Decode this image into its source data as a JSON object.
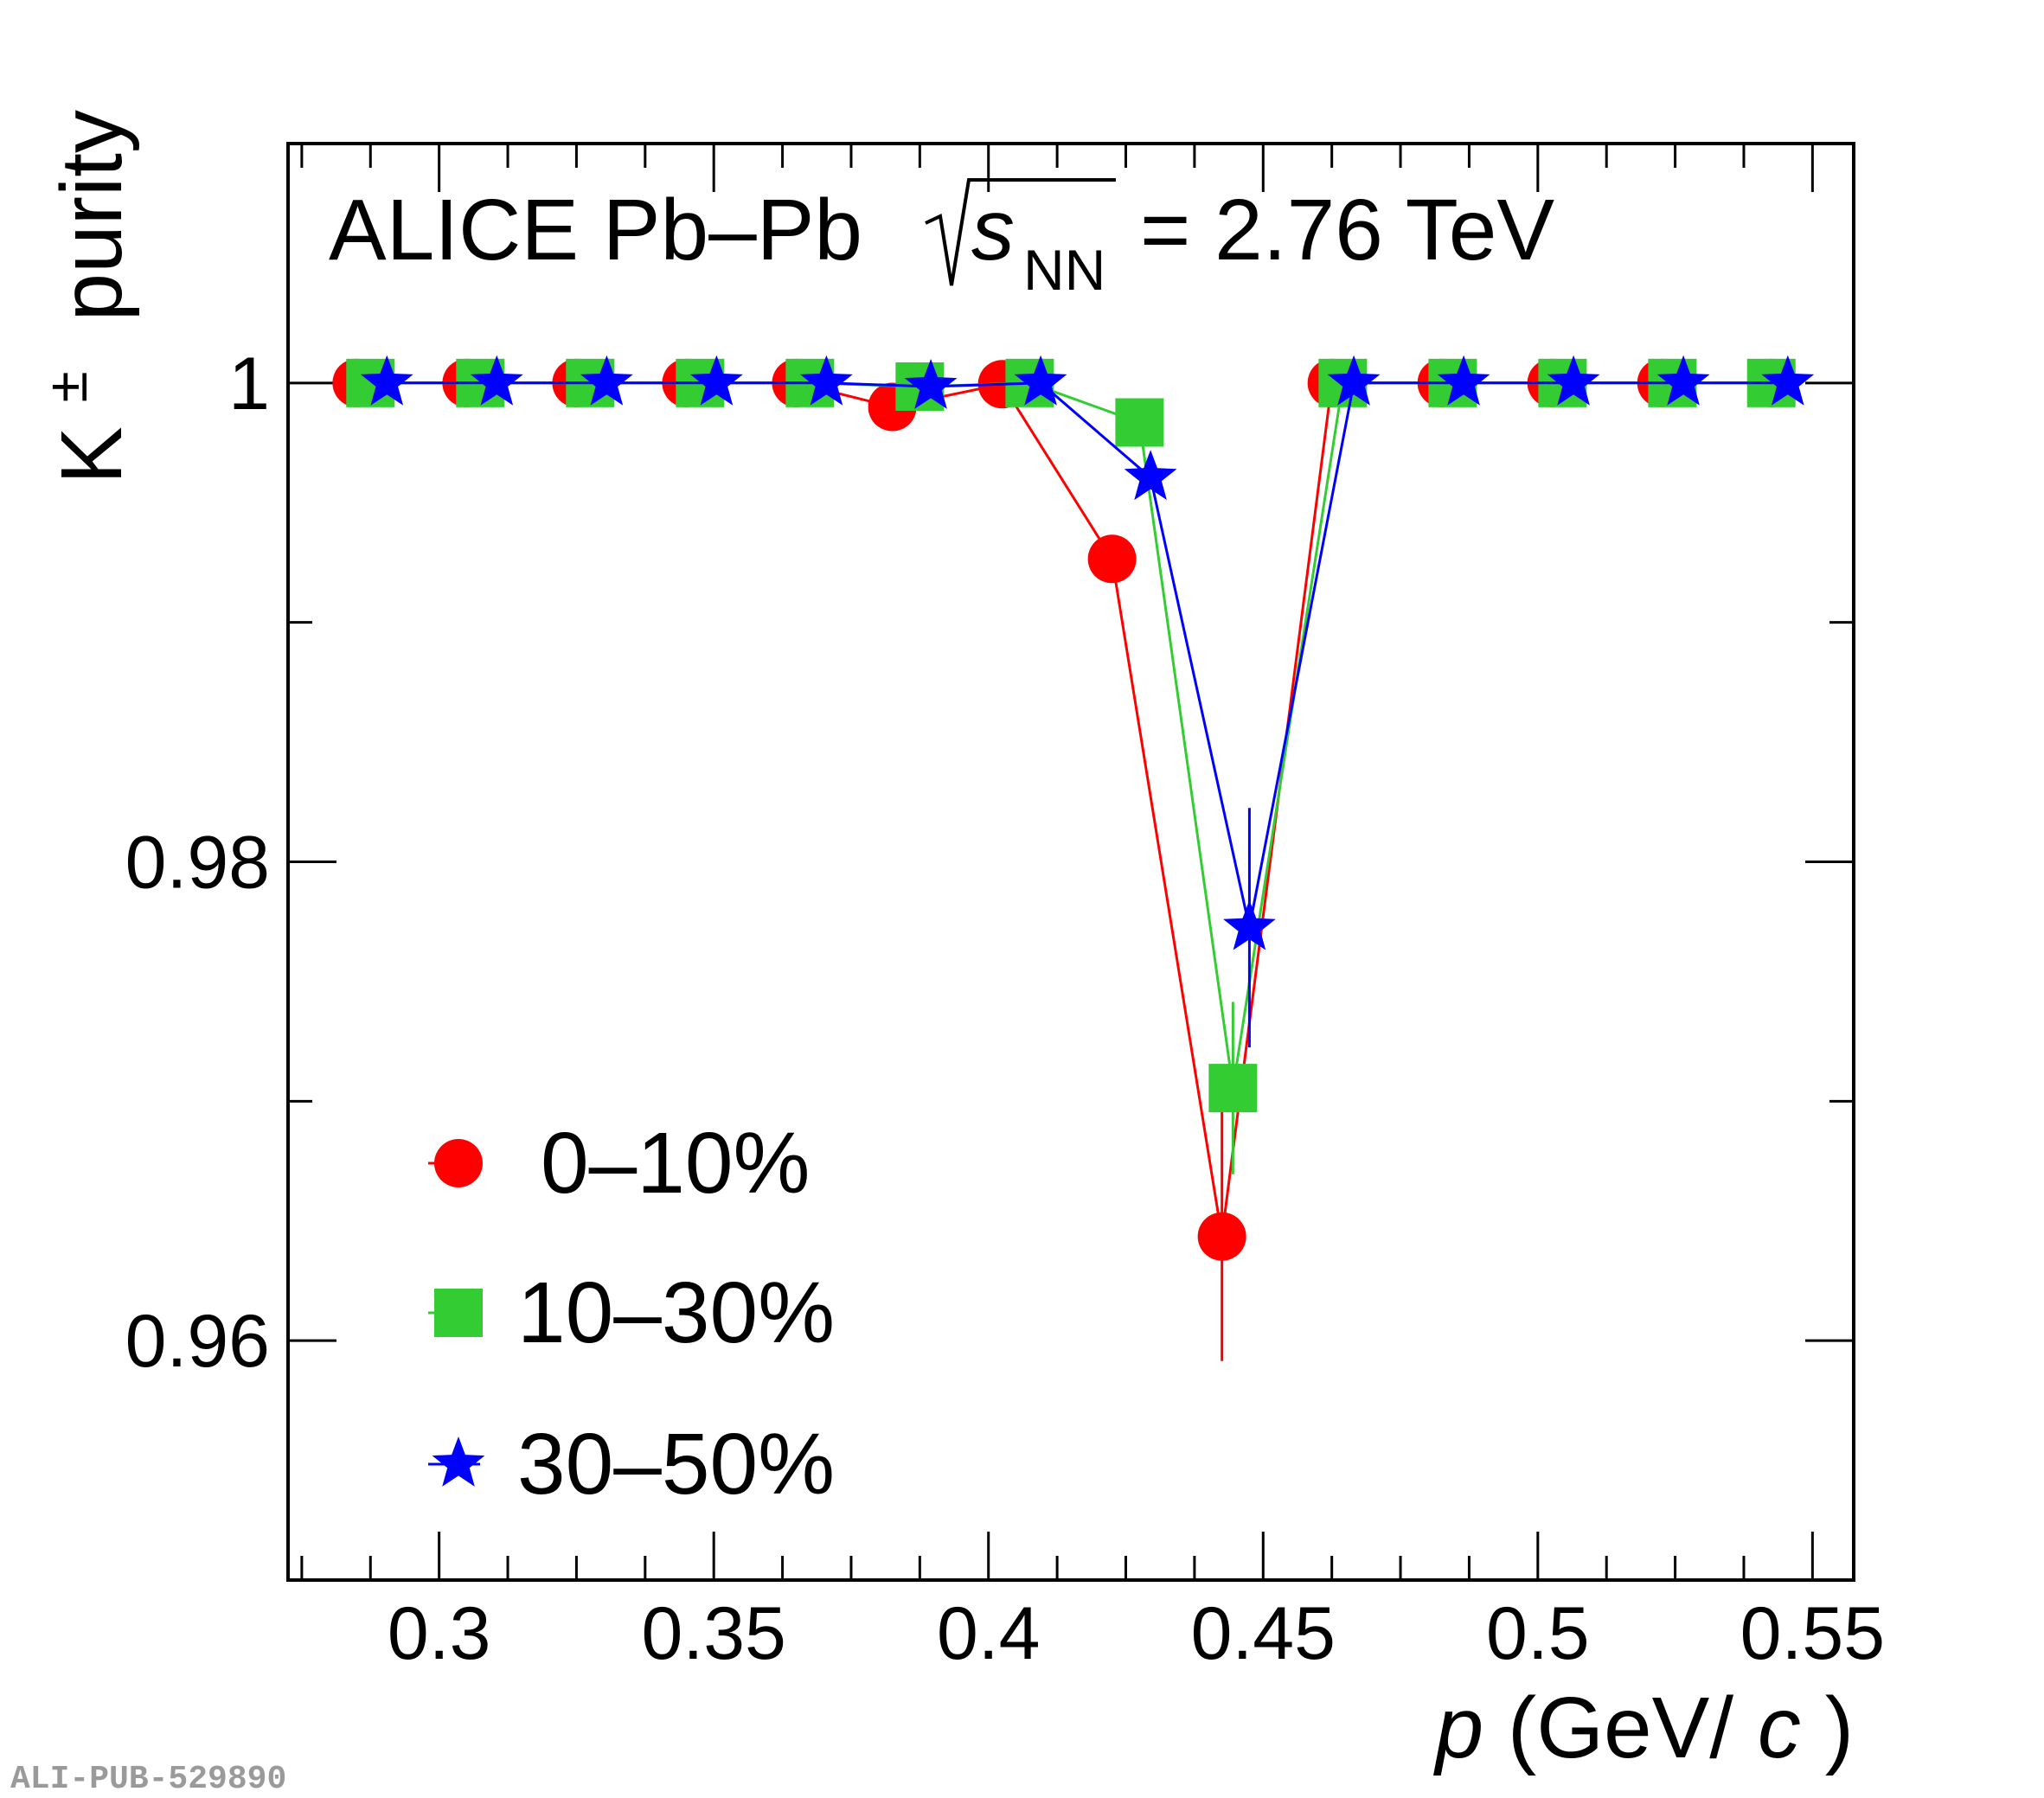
{
  "chart_data": {
    "type": "scatter",
    "title": "ALICE Pb–Pb",
    "energy_label": {
      "symbol": "s",
      "subscript": "NN",
      "value": "= 2.76 TeV"
    },
    "xlabel": {
      "var": "p",
      "unit_open": " (GeV/",
      "unit_var": "c",
      "unit_close": ")"
    },
    "ylabel": {
      "base": "K",
      "superscript": "±",
      "rest": "purity"
    },
    "xlim": [
      0.2725,
      0.5575
    ],
    "ylim": [
      0.95,
      1.01
    ],
    "x_ticks": [
      0.3,
      0.35,
      0.4,
      0.45,
      0.5,
      0.55
    ],
    "x_tick_labels": [
      "0.3",
      "0.35",
      "0.4",
      "0.45",
      "0.5",
      "0.55"
    ],
    "y_ticks": [
      0.96,
      0.97,
      0.98,
      0.99,
      1.0
    ],
    "y_tick_labels": [
      "0.96",
      "",
      "0.98",
      "",
      "1"
    ],
    "grid": false,
    "legend_position": "bottom-left",
    "series": [
      {
        "name": "0–10%",
        "color": "#ff0000",
        "marker": "circle",
        "x": [
          0.285,
          0.305,
          0.325,
          0.345,
          0.365,
          0.3825,
          0.4025,
          0.4225,
          0.4425,
          0.4625,
          0.4825,
          0.5025,
          0.5225,
          0.5425
        ],
        "y": [
          1.0,
          1.0,
          1.0,
          1.0,
          1.0,
          0.999,
          0.99995,
          0.99265,
          0.96435,
          1.0,
          1.0,
          1.0,
          1.0,
          1.0
        ],
        "yerr": [
          0,
          0,
          0,
          0,
          0,
          0,
          0,
          0,
          0.0052,
          0,
          0,
          0,
          0,
          0
        ]
      },
      {
        "name": "10–30%",
        "color": "#33cc33",
        "marker": "square",
        "x": [
          0.2875,
          0.3075,
          0.3275,
          0.3475,
          0.3675,
          0.3875,
          0.4075,
          0.4275,
          0.4445,
          0.4645,
          0.4845,
          0.5045,
          0.5245,
          0.5425
        ],
        "y": [
          1.0,
          1.0,
          1.0,
          1.0,
          1.0,
          0.99985,
          1.0,
          0.99835,
          0.97055,
          1.0,
          1.0,
          1.0,
          1.0,
          1.0
        ],
        "yerr": [
          0,
          0,
          0,
          0,
          0,
          0,
          0,
          0,
          0.0036,
          0,
          0,
          0,
          0,
          0
        ]
      },
      {
        "name": "30–50%",
        "color": "#0000ff",
        "marker": "star",
        "x": [
          0.2905,
          0.3105,
          0.3305,
          0.3505,
          0.3705,
          0.3895,
          0.4095,
          0.4295,
          0.4475,
          0.4665,
          0.4865,
          0.5065,
          0.5265,
          0.5455
        ],
        "y": [
          1.0,
          1.0,
          1.0,
          1.0,
          1.0,
          0.99985,
          1.0,
          0.99605,
          0.97725,
          1.0,
          1.0,
          1.0,
          1.0,
          1.0
        ],
        "yerr": [
          0,
          0,
          0,
          0,
          0,
          0,
          0,
          0,
          0.005,
          0,
          0,
          0,
          0,
          0
        ]
      }
    ]
  },
  "watermark": "ALI-PUB-529890"
}
